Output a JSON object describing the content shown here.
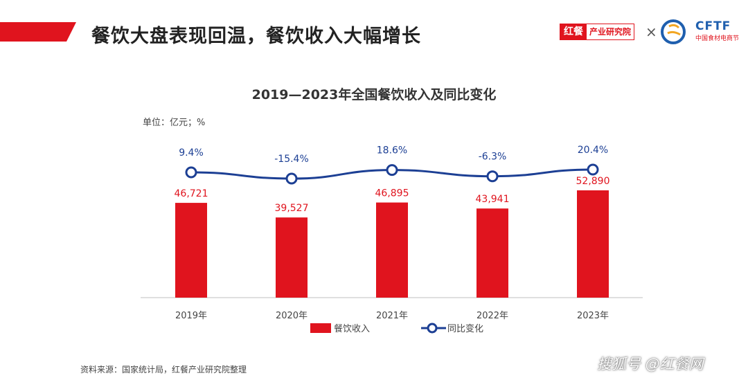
{
  "header": {
    "title": "餐饮大盘表现回温，餐饮收入大幅增长",
    "brand_mark": "红餐",
    "brand_name": "产业研究院",
    "times": "×",
    "partner_name": "CFTF",
    "partner_sub": "中国食材电商节"
  },
  "colors": {
    "accent_red": "#e0141e",
    "line_blue": "#1c3f94"
  },
  "chart_data": {
    "type": "bar+line",
    "title": "2019—2023年全国餐饮收入及同比变化",
    "unit": "单位：亿元；%",
    "categories": [
      "2019年",
      "2020年",
      "2021年",
      "2022年",
      "2023年"
    ],
    "series": [
      {
        "name": "餐饮收入",
        "type": "bar",
        "values": [
          46721,
          39527,
          46895,
          43941,
          52890
        ],
        "labels": [
          "46,721",
          "39,527",
          "46,895",
          "43,941",
          "52,890"
        ]
      },
      {
        "name": "同比变化",
        "type": "line",
        "values": [
          9.4,
          -15.4,
          18.6,
          -6.3,
          20.4
        ],
        "labels": [
          "9.4%",
          "-15.4%",
          "18.6%",
          "-6.3%",
          "20.4%"
        ]
      }
    ],
    "legend_position": "bottom",
    "grid": false
  },
  "footer": {
    "source": "资料来源：国家统计局，红餐产业研究院整理",
    "credit": "搜狐号 @红餐网"
  }
}
